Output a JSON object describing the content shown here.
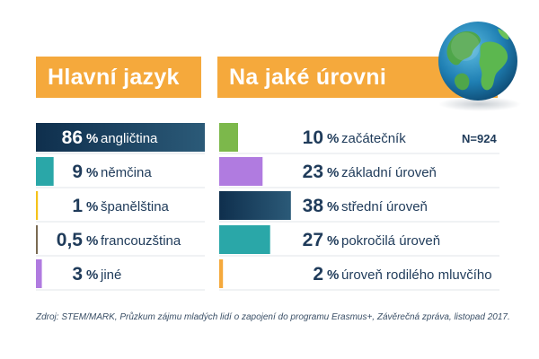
{
  "chart_data": [
    {
      "type": "bar",
      "title": "Hlavní jazyk",
      "unit": "%",
      "categories": [
        "angličtina",
        "němčina",
        "španělština",
        "francouzština",
        "jiné"
      ],
      "values": [
        86,
        9,
        1,
        0.5,
        3
      ],
      "value_labels": [
        "86",
        "9",
        "1",
        "0,5",
        "3"
      ],
      "colors": [
        "#183a5c",
        "#2aa7a8",
        "#f5c21a",
        "#7a6a52",
        "#b07be0"
      ]
    },
    {
      "type": "bar",
      "title": "Na jaké úrovni",
      "unit": "%",
      "categories": [
        "začátečník",
        "základní úroveň",
        "střední úroveň",
        "pokročilá úroveň",
        "úroveň rodilého mluvčího"
      ],
      "values": [
        10,
        23,
        38,
        27,
        2
      ],
      "value_labels": [
        "10",
        "23",
        "38",
        "27",
        "2"
      ],
      "colors": [
        "#7cb84b",
        "#b07be0",
        "#183a5c",
        "#2aa7a8",
        "#f5a93c"
      ],
      "note": "N=924"
    }
  ],
  "source": "Zdroj: STEM/MARK, Průzkum zájmu mladých lidí o zapojení do programu Erasmus+, Závěrečná zpráva, listopad 2017.",
  "icons": {
    "globe": "globe-icon"
  }
}
